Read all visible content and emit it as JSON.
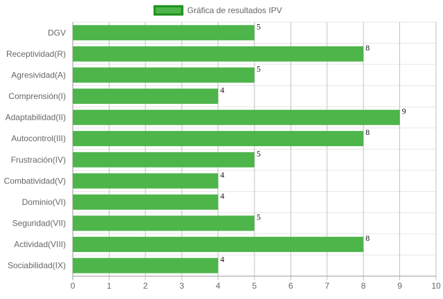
{
  "chart_data": {
    "type": "bar",
    "orientation": "horizontal",
    "legend": {
      "label": "Gráfica de resultados IPV",
      "position": "top"
    },
    "categories": [
      "DGV",
      "Receptividad(R)",
      "Agresividad(A)",
      "Comprensión(I)",
      "Adaptabilidad(II)",
      "Autocontrol(III)",
      "Frustración(IV)",
      "Combatividad(V)",
      "Dominio(VI)",
      "Seguridad(VII)",
      "Actividad(VIII)",
      "Sociabilidad(IX)"
    ],
    "series": [
      {
        "name": "Gráfica de resultados IPV",
        "values": [
          5,
          8,
          5,
          4,
          9,
          8,
          5,
          4,
          4,
          5,
          8,
          4
        ]
      }
    ],
    "xlim": [
      0,
      10
    ],
    "x_ticks": [
      "0",
      "1",
      "2",
      "3",
      "4",
      "5",
      "6",
      "7",
      "8",
      "9",
      "10"
    ],
    "grid": true,
    "show_value_labels": true,
    "colors": {
      "bar_fill": "#4db54a",
      "legend_border": "#1a8f1a",
      "grid": "#e6e6e6",
      "axis": "#999999"
    }
  }
}
